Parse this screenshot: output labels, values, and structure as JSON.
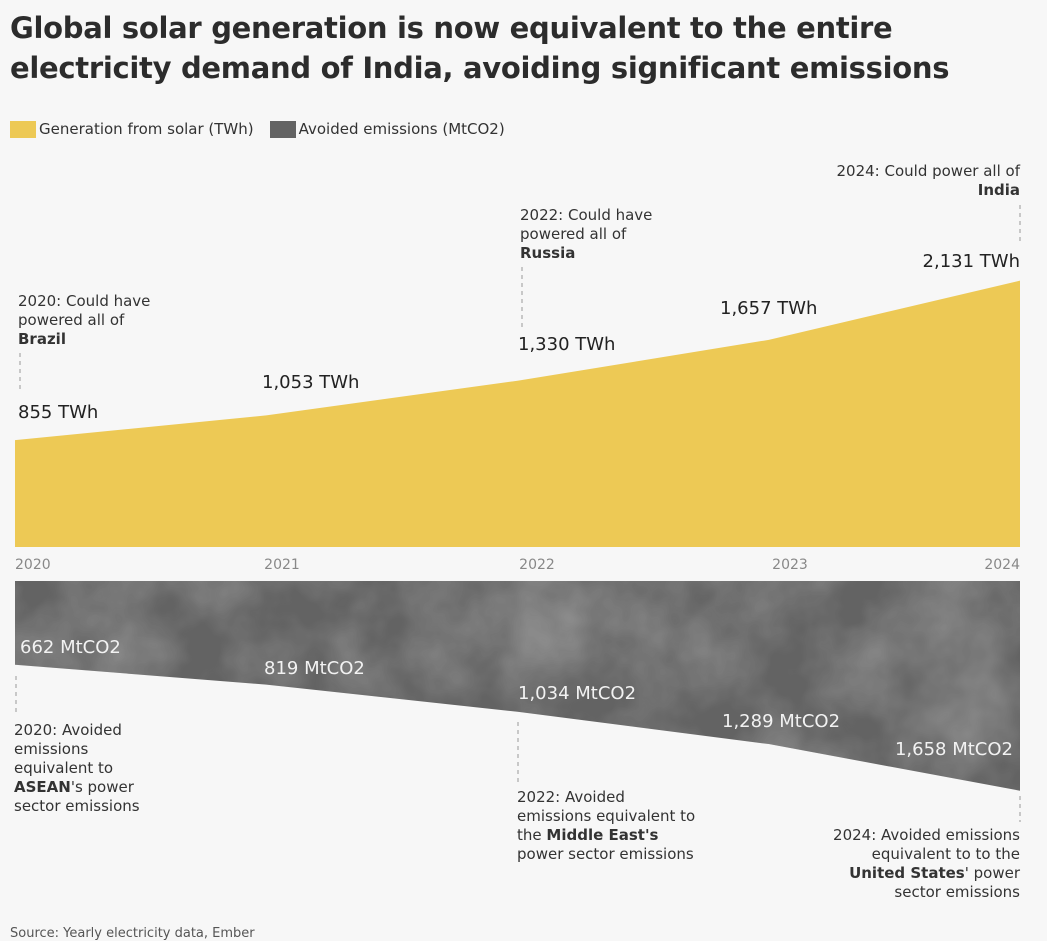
{
  "title": "Global solar generation is now equivalent to the entire electricity demand of India, avoiding significant emissions",
  "legend": [
    {
      "label": "Generation from solar (TWh)",
      "color": "#edc955"
    },
    {
      "label": "Avoided emissions (MtCO2)",
      "color": "#636363"
    }
  ],
  "chart_data": {
    "type": "area",
    "x": [
      "2020",
      "2021",
      "2022",
      "2023",
      "2024"
    ],
    "series": [
      {
        "name": "Generation from solar (TWh)",
        "values": [
          855,
          1053,
          1330,
          1657,
          2131
        ],
        "labels": [
          "855 TWh",
          "1,053 TWh",
          "1,330 TWh",
          "1,657 TWh",
          "2,131 TWh"
        ],
        "color": "#edc955"
      },
      {
        "name": "Avoided emissions (MtCO2)",
        "values": [
          662,
          819,
          1034,
          1289,
          1658
        ],
        "labels": [
          "662 MtCO2",
          "819 MtCO2",
          "1,034 MtCO2",
          "1,289 MtCO2",
          "1,658 MtCO2"
        ],
        "color": "#636363"
      }
    ]
  },
  "annotations": {
    "solar_2020": {
      "pre": "2020: Could have powered all of",
      "bold": "Brazil"
    },
    "solar_2022": {
      "pre": "2022: Could have powered all of",
      "bold": "Russia"
    },
    "solar_2024": {
      "pre": "2024: Could power all of",
      "bold": "India"
    },
    "em_2020": {
      "bold": "ASEAN",
      "pre": "2020: Avoided emissions equivalent to",
      "post": "'s power sector emissions"
    },
    "em_2022": {
      "pre": "2022: Avoided emissions equivalent to the",
      "bold": "Middle East's",
      "post": "power sector emissions"
    },
    "em_2024": {
      "pre": "2024: Avoided emissions equivalent to to the",
      "bold": "United States",
      "post": "' power sector emissions"
    }
  },
  "source": "Source: Yearly electricity data, Ember"
}
